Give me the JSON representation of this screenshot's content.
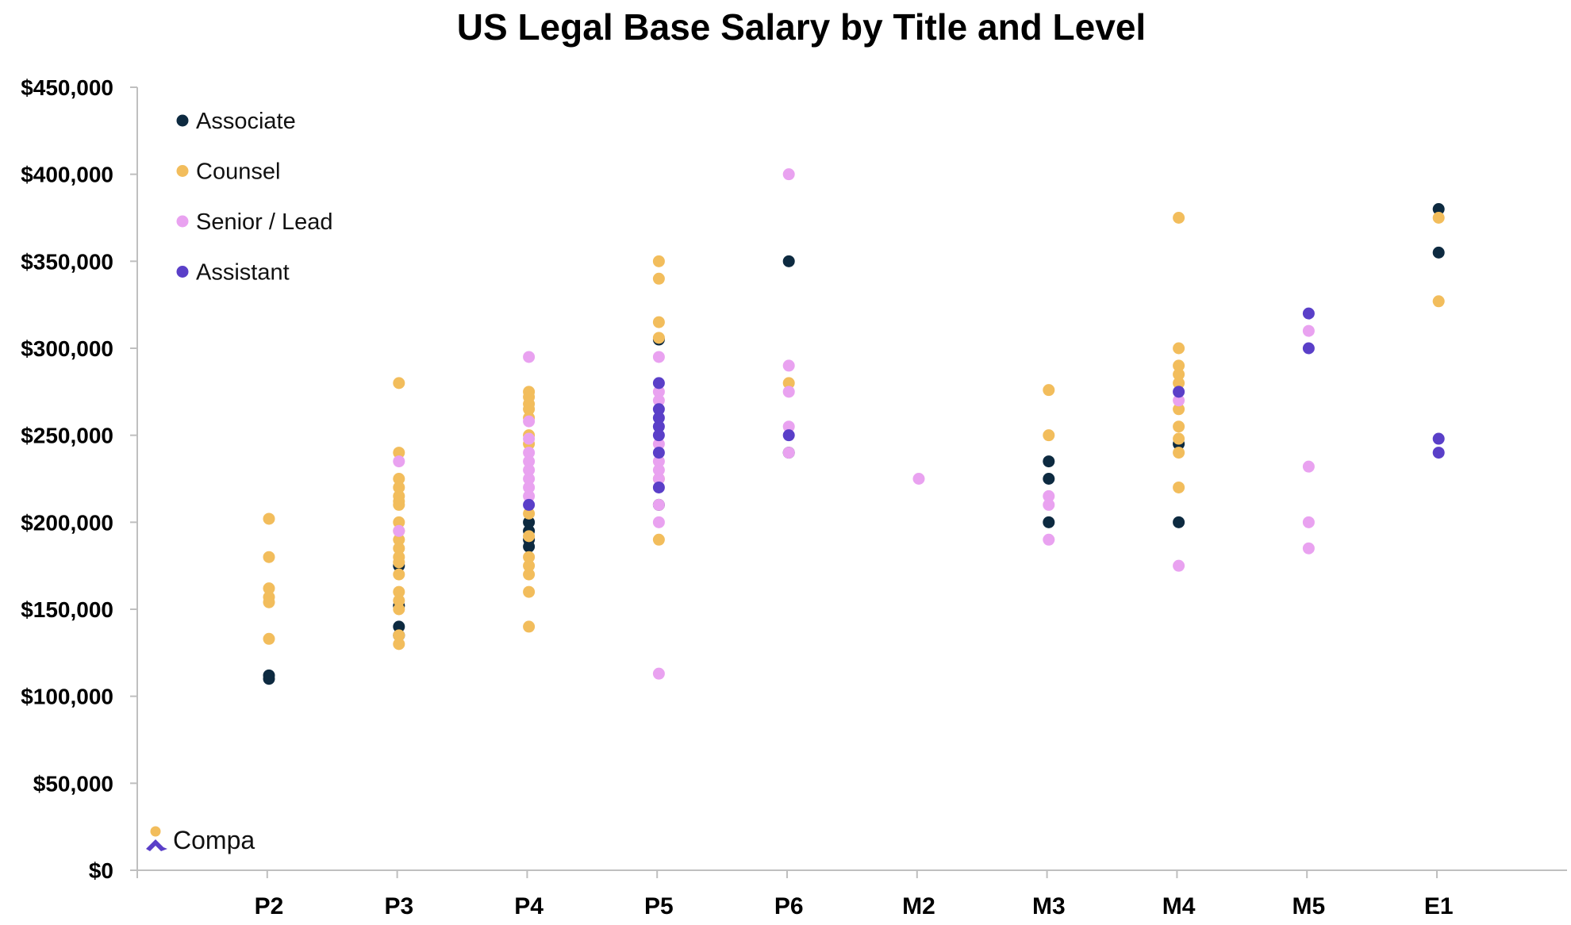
{
  "chart_data": {
    "type": "scatter",
    "title": "US Legal Base Salary by Title and Level",
    "xlabel": "",
    "ylabel": "",
    "categories": [
      "P2",
      "P3",
      "P4",
      "P5",
      "P6",
      "M2",
      "M3",
      "M4",
      "M5",
      "E1"
    ],
    "ylim": [
      0,
      450000
    ],
    "ytick_values": [
      0,
      50000,
      100000,
      150000,
      200000,
      250000,
      300000,
      350000,
      400000,
      450000
    ],
    "ytick_labels": [
      "$0",
      "$50,000",
      "$100,000",
      "$150,000",
      "$200,000",
      "$250,000",
      "$300,000",
      "$350,000",
      "$400,000",
      "$450,000"
    ],
    "grid": false,
    "legend_position": "top-left",
    "series": [
      {
        "name": "Associate",
        "color": "#0d2a40",
        "points": [
          [
            "P2",
            112000
          ],
          [
            "P2",
            110000
          ],
          [
            "P3",
            175000
          ],
          [
            "P3",
            152000
          ],
          [
            "P3",
            140000
          ],
          [
            "P3",
            135000
          ],
          [
            "P4",
            200000
          ],
          [
            "P4",
            195000
          ],
          [
            "P4",
            190000
          ],
          [
            "P4",
            186000
          ],
          [
            "P5",
            305000
          ],
          [
            "P5",
            210000
          ],
          [
            "P6",
            350000
          ],
          [
            "P6",
            240000
          ],
          [
            "M3",
            235000
          ],
          [
            "M3",
            225000
          ],
          [
            "M3",
            200000
          ],
          [
            "M4",
            245000
          ],
          [
            "M4",
            200000
          ],
          [
            "E1",
            380000
          ],
          [
            "E1",
            355000
          ]
        ]
      },
      {
        "name": "Counsel",
        "color": "#f2bd5c",
        "points": [
          [
            "P2",
            202000
          ],
          [
            "P2",
            180000
          ],
          [
            "P2",
            162000
          ],
          [
            "P2",
            157000
          ],
          [
            "P2",
            154000
          ],
          [
            "P2",
            133000
          ],
          [
            "P3",
            280000
          ],
          [
            "P3",
            240000
          ],
          [
            "P3",
            225000
          ],
          [
            "P3",
            220000
          ],
          [
            "P3",
            215000
          ],
          [
            "P3",
            212000
          ],
          [
            "P3",
            210000
          ],
          [
            "P3",
            200000
          ],
          [
            "P3",
            195000
          ],
          [
            "P3",
            190000
          ],
          [
            "P3",
            185000
          ],
          [
            "P3",
            180000
          ],
          [
            "P3",
            177000
          ],
          [
            "P3",
            170000
          ],
          [
            "P3",
            160000
          ],
          [
            "P3",
            155000
          ],
          [
            "P3",
            150000
          ],
          [
            "P3",
            135000
          ],
          [
            "P3",
            130000
          ],
          [
            "P4",
            275000
          ],
          [
            "P4",
            272000
          ],
          [
            "P4",
            268000
          ],
          [
            "P4",
            265000
          ],
          [
            "P4",
            260000
          ],
          [
            "P4",
            250000
          ],
          [
            "P4",
            245000
          ],
          [
            "P4",
            205000
          ],
          [
            "P4",
            192000
          ],
          [
            "P4",
            180000
          ],
          [
            "P4",
            175000
          ],
          [
            "P4",
            170000
          ],
          [
            "P4",
            160000
          ],
          [
            "P4",
            140000
          ],
          [
            "P5",
            350000
          ],
          [
            "P5",
            340000
          ],
          [
            "P5",
            315000
          ],
          [
            "P5",
            306000
          ],
          [
            "P5",
            225000
          ],
          [
            "P5",
            190000
          ],
          [
            "P6",
            280000
          ],
          [
            "M3",
            276000
          ],
          [
            "M3",
            250000
          ],
          [
            "M4",
            375000
          ],
          [
            "M4",
            300000
          ],
          [
            "M4",
            290000
          ],
          [
            "M4",
            285000
          ],
          [
            "M4",
            280000
          ],
          [
            "M4",
            265000
          ],
          [
            "M4",
            255000
          ],
          [
            "M4",
            248000
          ],
          [
            "M4",
            240000
          ],
          [
            "M4",
            220000
          ],
          [
            "E1",
            375000
          ],
          [
            "E1",
            327000
          ]
        ]
      },
      {
        "name": "Senior / Lead",
        "color": "#e9a2f0",
        "points": [
          [
            "P3",
            235000
          ],
          [
            "P3",
            195000
          ],
          [
            "P4",
            295000
          ],
          [
            "P4",
            258000
          ],
          [
            "P4",
            248000
          ],
          [
            "P4",
            240000
          ],
          [
            "P4",
            235000
          ],
          [
            "P4",
            230000
          ],
          [
            "P4",
            225000
          ],
          [
            "P4",
            220000
          ],
          [
            "P4",
            215000
          ],
          [
            "P5",
            295000
          ],
          [
            "P5",
            275000
          ],
          [
            "P5",
            270000
          ],
          [
            "P5",
            245000
          ],
          [
            "P5",
            235000
          ],
          [
            "P5",
            230000
          ],
          [
            "P5",
            225000
          ],
          [
            "P5",
            210000
          ],
          [
            "P5",
            200000
          ],
          [
            "P5",
            113000
          ],
          [
            "P6",
            400000
          ],
          [
            "P6",
            290000
          ],
          [
            "P6",
            275000
          ],
          [
            "P6",
            255000
          ],
          [
            "P6",
            240000
          ],
          [
            "M2",
            225000
          ],
          [
            "M3",
            215000
          ],
          [
            "M3",
            210000
          ],
          [
            "M3",
            190000
          ],
          [
            "M4",
            270000
          ],
          [
            "M4",
            175000
          ],
          [
            "M5",
            310000
          ],
          [
            "M5",
            232000
          ],
          [
            "M5",
            200000
          ],
          [
            "M5",
            185000
          ]
        ]
      },
      {
        "name": "Assistant",
        "color": "#5a3fc8",
        "points": [
          [
            "P4",
            210000
          ],
          [
            "P5",
            280000
          ],
          [
            "P5",
            265000
          ],
          [
            "P5",
            260000
          ],
          [
            "P5",
            255000
          ],
          [
            "P5",
            250000
          ],
          [
            "P5",
            240000
          ],
          [
            "P5",
            220000
          ],
          [
            "P6",
            250000
          ],
          [
            "M4",
            275000
          ],
          [
            "M5",
            320000
          ],
          [
            "M5",
            300000
          ],
          [
            "E1",
            248000
          ],
          [
            "E1",
            240000
          ]
        ]
      }
    ]
  },
  "logo": {
    "text": "Compa",
    "mark_colors": [
      "#f2bd5c",
      "#5a3fc8"
    ]
  }
}
